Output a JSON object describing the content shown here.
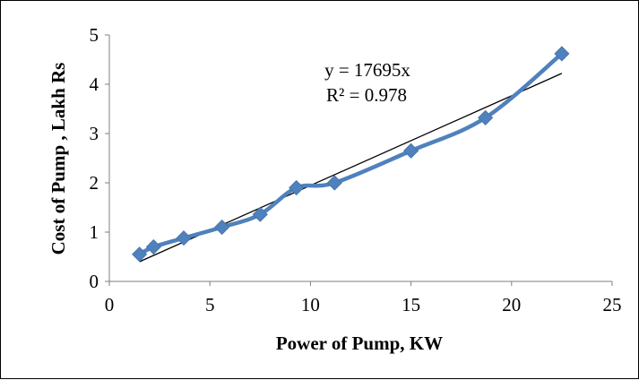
{
  "chart_data": {
    "type": "scatter",
    "xlabel": "Power of Pump, KW",
    "ylabel": "Cost of Pump , Lakh Rs",
    "xlim": [
      0,
      25
    ],
    "ylim": [
      0,
      5
    ],
    "xticks": [
      0,
      5,
      10,
      15,
      20,
      25
    ],
    "yticks": [
      0,
      1,
      2,
      3,
      4,
      5
    ],
    "xtick_labels": [
      "0",
      "5",
      "10",
      "15",
      "20",
      "25"
    ],
    "ytick_labels": [
      "0",
      "1",
      "2",
      "3",
      "4",
      "5"
    ],
    "grid": false,
    "legend": "none",
    "series": [
      {
        "style": "smooth-line-with-diamond-markers",
        "color": "#4F81BD",
        "x": [
          1.5,
          2.2,
          3.7,
          5.6,
          7.5,
          9.3,
          11.2,
          15.0,
          18.7,
          22.5
        ],
        "y": [
          0.55,
          0.7,
          0.88,
          1.1,
          1.36,
          1.9,
          2.0,
          2.65,
          3.32,
          4.62
        ]
      }
    ],
    "trendline": {
      "type": "linear",
      "color": "#000000",
      "x": [
        1.5,
        22.5
      ],
      "y": [
        0.4,
        4.22
      ]
    },
    "annotations": {
      "equation": "y = 17695x",
      "r_squared": "R² = 0.978"
    }
  }
}
